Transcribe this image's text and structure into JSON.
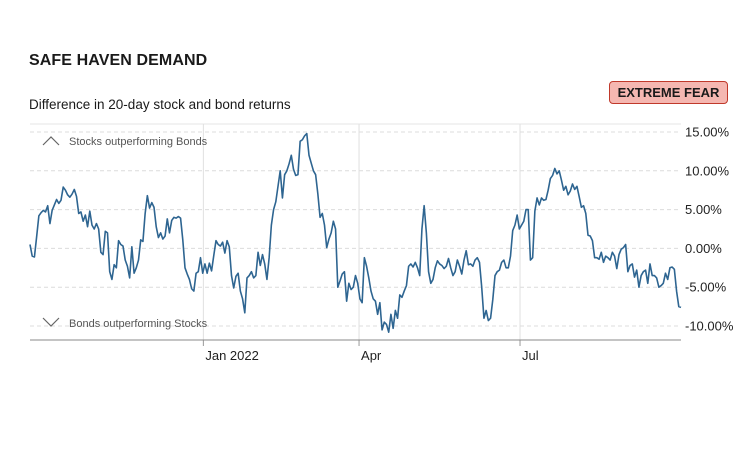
{
  "header": {
    "title": "SAFE HAVEN DEMAND",
    "subtitle": "Difference in 20-day stock and bond returns",
    "status_badge": "EXTREME FEAR",
    "badge_bg": "#f5b7b1",
    "badge_border": "#c0392b"
  },
  "chart_data": {
    "type": "line",
    "title": "SAFE HAVEN DEMAND",
    "subtitle": "Difference in 20-day stock and bond returns",
    "xlabel": "",
    "ylabel": "",
    "ylim": [
      -10,
      15
    ],
    "y_ticks": [
      15,
      10,
      5,
      0,
      -5,
      -10
    ],
    "y_tick_labels": [
      "15.00%",
      "10.00%",
      "5.00%",
      "0.00%",
      "-5.00%",
      "-10.00%"
    ],
    "x_ticks": [
      {
        "label": "Jan 2022",
        "date": "2022-01-03"
      },
      {
        "label": "Apr",
        "date": "2022-04-01"
      },
      {
        "label": "Jul",
        "date": "2022-07-01"
      }
    ],
    "x_range": [
      "2021-09-27",
      "2022-09-30"
    ],
    "annotations": {
      "up": "Stocks outperforming Bonds",
      "down": "Bonds outperforming Stocks"
    },
    "grid": true,
    "line_color": "#2e6591",
    "series": [
      {
        "name": "Safe haven demand",
        "values": [
          0.5,
          -1.0,
          -1.1,
          1.5,
          4.2,
          4.6,
          4.9,
          4.7,
          5.5,
          3.2,
          4.9,
          5.6,
          6.3,
          5.8,
          6.2,
          7.9,
          7.5,
          6.9,
          6.6,
          7.0,
          7.6,
          6.7,
          4.5,
          4.7,
          3.5,
          4.3,
          2.8,
          4.8,
          3.0,
          2.5,
          3.2,
          2.5,
          -0.5,
          -0.8,
          2.2,
          2.0,
          -3.0,
          -4.0,
          -2.1,
          -2.5,
          1.0,
          0.5,
          0.3,
          -1.5,
          -2.3,
          -3.8,
          0.2,
          -3.2,
          -2.5,
          -1.5,
          1.1,
          0.9,
          4.5,
          6.8,
          5.2,
          5.9,
          5.3,
          2.8,
          1.4,
          2.0,
          1.2,
          1.6,
          3.8,
          2.0,
          3.6,
          4.0,
          3.9,
          4.1,
          3.9,
          1.1,
          -2.5,
          -3.3,
          -4.0,
          -5.2,
          -5.5,
          -3.2,
          -3.0,
          -1.2,
          -3.2,
          -2.0,
          -3.2,
          -1.9,
          -2.9,
          -0.9,
          1.0,
          0.5,
          0.3,
          0.8,
          -0.6,
          1.0,
          0.2,
          -3.5,
          -5.1,
          -3.6,
          -3.2,
          -5.5,
          -6.5,
          -8.3,
          -3.8,
          -3.5,
          -3.0,
          -3.8,
          -3.5,
          -0.5,
          -2.2,
          -0.8,
          -2.0,
          -4.0,
          -1.2,
          3.0,
          5.0,
          6.0,
          8.0,
          10.0,
          6.5,
          9.5,
          10.0,
          10.9,
          12.0,
          10.2,
          9.4,
          9.5,
          13.8,
          14.0,
          14.5,
          14.8,
          12.0,
          11.0,
          10.0,
          9.5,
          7.0,
          4.0,
          4.5,
          3.0,
          0.1,
          1.2,
          2.0,
          3.5,
          2.5,
          -5.0,
          -4.2,
          -3.3,
          -3.0,
          -6.8,
          -4.5,
          -5.3,
          -5.0,
          -3.5,
          -4.5,
          -6.5,
          -7.0,
          -1.2,
          -2.3,
          -3.8,
          -5.5,
          -6.5,
          -6.8,
          -8.5,
          -7.0,
          -10.5,
          -9.5,
          -9.8,
          -10.8,
          -8.5,
          -10.3,
          -8.0,
          -9.0,
          -6.0,
          -6.3,
          -5.5,
          -4.8,
          -2.3,
          -2.0,
          -2.4,
          -1.8,
          -2.5,
          -3.5,
          2.5,
          5.5,
          2.0,
          -3.0,
          -4.5,
          -4.0,
          -2.5,
          -1.6,
          -2.0,
          -2.2,
          -2.6,
          -2.3,
          -1.3,
          -2.5,
          -3.5,
          -3.0,
          -1.5,
          -2.3,
          -3.3,
          -1.5,
          -0.3,
          -2.1,
          -2.0,
          -2.3,
          -1.5,
          -1.2,
          -1.8,
          -5.0,
          -9.0,
          -8.0,
          -9.3,
          -9.0,
          -6.6,
          -3.5,
          -3.0,
          -2.8,
          -1.8,
          -1.5,
          -2.5,
          -2.5,
          -1.0,
          2.3,
          3.0,
          4.3,
          2.5,
          3.0,
          3.5,
          5.0,
          5.0,
          -1.5,
          -1.2,
          4.8,
          6.5,
          5.6,
          6.5,
          6.2,
          6.3,
          7.5,
          9.0,
          9.4,
          10.3,
          9.6,
          10.0,
          8.8,
          7.5,
          8.0,
          6.9,
          7.4,
          8.3,
          7.6,
          8.0,
          6.7,
          5.3,
          5.5,
          4.5,
          1.7,
          1.6,
          1.0,
          -1.2,
          -1.2,
          -1.4,
          -0.5,
          -1.8,
          -1.0,
          -1.2,
          -1.5,
          -0.5,
          -1.0,
          -2.6,
          -0.8,
          -0.1,
          0.1,
          0.5,
          -3.0,
          -2.2,
          -2.0,
          -3.7,
          -2.8,
          -5.0,
          -3.5,
          -3.0,
          -2.8,
          -4.5,
          -2.0,
          -3.5,
          -3.5,
          -3.8,
          -5.0,
          -4.8,
          -4.5,
          -3.2,
          -4.0,
          -2.5,
          -2.4,
          -2.7,
          -5.5,
          -7.5,
          -7.6
        ]
      }
    ]
  }
}
